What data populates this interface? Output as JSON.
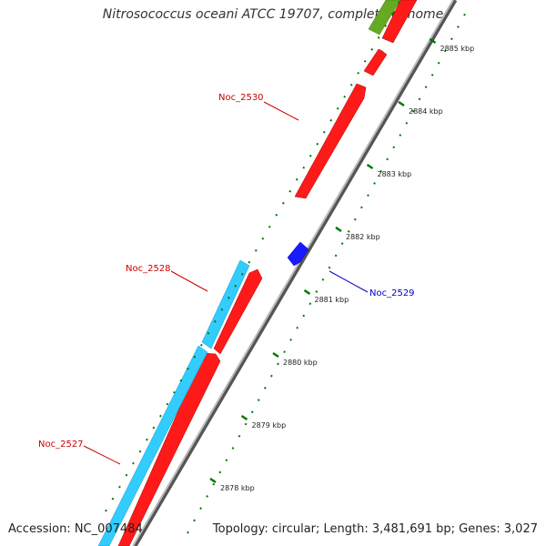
{
  "title": "Nitrosococcus oceani ATCC 19707, complete genome",
  "accession_text": "Accession: NC_007484",
  "summary_text": "Topology: circular; Length: 3,481,691 bp; Genes: 3,027",
  "ticks": [
    {
      "kbp": 2878,
      "label": "2878 kbp"
    },
    {
      "kbp": 2879,
      "label": "2879 kbp"
    },
    {
      "kbp": 2880,
      "label": "2880 kbp"
    },
    {
      "kbp": 2881,
      "label": "2881 kbp"
    },
    {
      "kbp": 2882,
      "label": "2882 kbp"
    },
    {
      "kbp": 2883,
      "label": "2883 kbp"
    },
    {
      "kbp": 2884,
      "label": "2884 kbp"
    },
    {
      "kbp": 2885,
      "label": "2885 kbp"
    }
  ],
  "gene_labels": [
    {
      "name": "Noc_2530",
      "color": "#cc0000"
    },
    {
      "name": "Noc_2529",
      "color": "#0000cc"
    },
    {
      "name": "Noc_2528",
      "color": "#cc0000"
    },
    {
      "name": "Noc_2527",
      "color": "#cc0000"
    }
  ],
  "colors": {
    "forward_gene": "#ff0000",
    "reverse_gene": "#0000ff",
    "cds_feature": "#33ccff",
    "other_feature": "#66aa22",
    "tick_marks": "#007700",
    "backbone": "#888888"
  }
}
